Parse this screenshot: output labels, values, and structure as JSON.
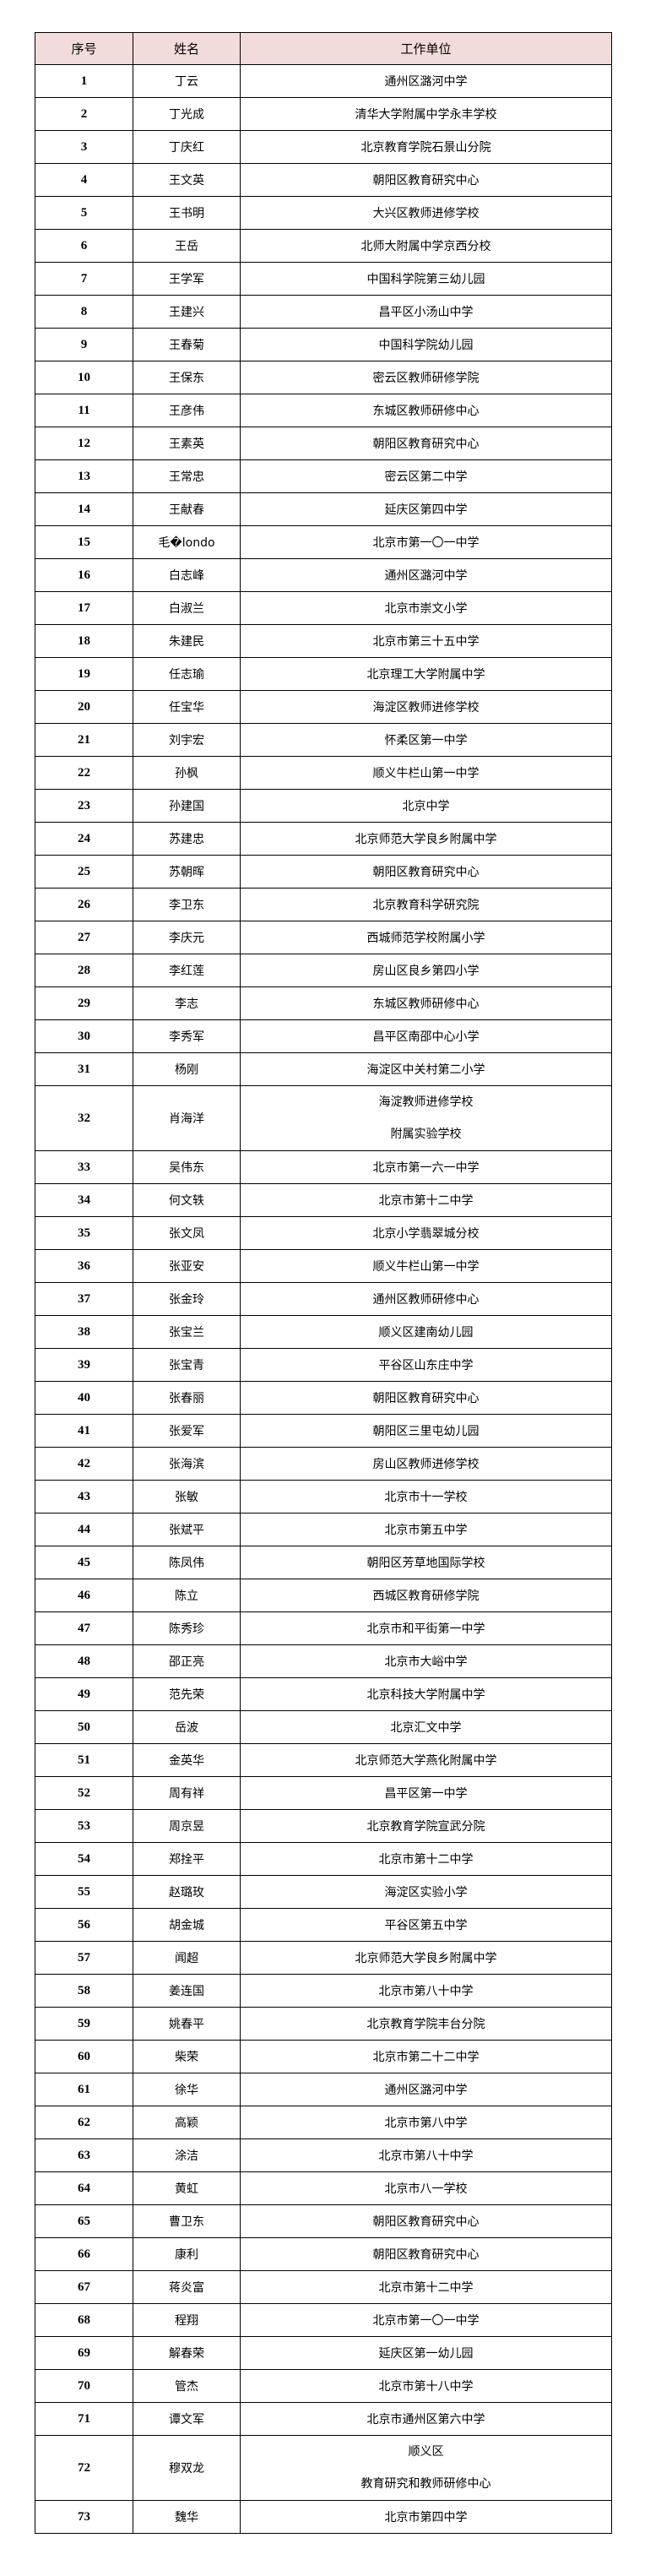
{
  "table": {
    "headers": [
      "序号",
      "姓名",
      "工作单位"
    ],
    "rows": [
      [
        "1",
        "丁云",
        "通州区潞河中学"
      ],
      [
        "2",
        "丁光成",
        "清华大学附属中学永丰学校"
      ],
      [
        "3",
        "丁庆红",
        "北京教育学院石景山分院"
      ],
      [
        "4",
        "王文英",
        "朝阳区教育研究中心"
      ],
      [
        "5",
        "王书明",
        "大兴区教师进修学校"
      ],
      [
        "6",
        "王岳",
        "北师大附属中学京西分校"
      ],
      [
        "7",
        "王学军",
        "中国科学院第三幼儿园"
      ],
      [
        "8",
        "王建兴",
        "昌平区小汤山中学"
      ],
      [
        "9",
        "王春菊",
        "中国科学院幼儿园"
      ],
      [
        "10",
        "王保东",
        "密云区教师研修学院"
      ],
      [
        "11",
        "王彦伟",
        "东城区教师研修中心"
      ],
      [
        "12",
        "王素英",
        "朝阳区教育研究中心"
      ],
      [
        "13",
        "王常忠",
        "密云区第二中学"
      ],
      [
        "14",
        "王献春",
        "延庆区第四中学"
      ],
      [
        "15",
        "毛�londo",
        "北京市第一〇一中学"
      ],
      [
        "16",
        "白志峰",
        "通州区潞河中学"
      ],
      [
        "17",
        "白淑兰",
        "北京市崇文小学"
      ],
      [
        "18",
        "朱建民",
        "北京市第三十五中学"
      ],
      [
        "19",
        "任志瑜",
        "北京理工大学附属中学"
      ],
      [
        "20",
        "任宝华",
        "海淀区教师进修学校"
      ],
      [
        "21",
        "刘宇宏",
        "怀柔区第一中学"
      ],
      [
        "22",
        "孙枫",
        "顺义牛栏山第一中学"
      ],
      [
        "23",
        "孙建国",
        "北京中学"
      ],
      [
        "24",
        "苏建忠",
        "北京师范大学良乡附属中学"
      ],
      [
        "25",
        "苏朝晖",
        "朝阳区教育研究中心"
      ],
      [
        "26",
        "李卫东",
        "北京教育科学研究院"
      ],
      [
        "27",
        "李庆元",
        "西城师范学校附属小学"
      ],
      [
        "28",
        "李红莲",
        "房山区良乡第四小学"
      ],
      [
        "29",
        "李志",
        "东城区教师研修中心"
      ],
      [
        "30",
        "李秀军",
        "昌平区南邵中心小学"
      ],
      [
        "31",
        "杨刚",
        "海淀区中关村第二小学"
      ],
      [
        "32",
        "肖海洋",
        "海淀教师进修学校\n附属实验学校"
      ],
      [
        "33",
        "吴伟东",
        "北京市第一六一中学"
      ],
      [
        "34",
        "何文轶",
        "北京市第十二中学"
      ],
      [
        "35",
        "张文凤",
        "北京小学翡翠城分校"
      ],
      [
        "36",
        "张亚安",
        "顺义牛栏山第一中学"
      ],
      [
        "37",
        "张金玲",
        "通州区教师研修中心"
      ],
      [
        "38",
        "张宝兰",
        "顺义区建南幼儿园"
      ],
      [
        "39",
        "张宝青",
        "平谷区山东庄中学"
      ],
      [
        "40",
        "张春丽",
        "朝阳区教育研究中心"
      ],
      [
        "41",
        "张爱军",
        "朝阳区三里屯幼儿园"
      ],
      [
        "42",
        "张海滨",
        "房山区教师进修学校"
      ],
      [
        "43",
        "张敏",
        "北京市十一学校"
      ],
      [
        "44",
        "张斌平",
        "北京市第五中学"
      ],
      [
        "45",
        "陈凤伟",
        "朝阳区芳草地国际学校"
      ],
      [
        "46",
        "陈立",
        "西城区教育研修学院"
      ],
      [
        "47",
        "陈秀珍",
        "北京市和平街第一中学"
      ],
      [
        "48",
        "邵正亮",
        "北京市大峪中学"
      ],
      [
        "49",
        "范先荣",
        "北京科技大学附属中学"
      ],
      [
        "50",
        "岳波",
        "北京汇文中学"
      ],
      [
        "51",
        "金英华",
        "北京师范大学燕化附属中学"
      ],
      [
        "52",
        "周有祥",
        "昌平区第一中学"
      ],
      [
        "53",
        "周京昱",
        "北京教育学院宣武分院"
      ],
      [
        "54",
        "郑拴平",
        "北京市第十二中学"
      ],
      [
        "55",
        "赵璐玫",
        "海淀区实验小学"
      ],
      [
        "56",
        "胡金城",
        "平谷区第五中学"
      ],
      [
        "57",
        "闻超",
        "北京师范大学良乡附属中学"
      ],
      [
        "58",
        "姜连国",
        "北京市第八十中学"
      ],
      [
        "59",
        "姚春平",
        "北京教育学院丰台分院"
      ],
      [
        "60",
        "柴荣",
        "北京市第二十二中学"
      ],
      [
        "61",
        "徐华",
        "通州区潞河中学"
      ],
      [
        "62",
        "高颖",
        "北京市第八中学"
      ],
      [
        "63",
        "涂洁",
        "北京市第八十中学"
      ],
      [
        "64",
        "黄虹",
        "北京市八一学校"
      ],
      [
        "65",
        "曹卫东",
        "朝阳区教育研究中心"
      ],
      [
        "66",
        "康利",
        "朝阳区教育研究中心"
      ],
      [
        "67",
        "蒋炎富",
        "北京市第十二中学"
      ],
      [
        "68",
        "程翔",
        "北京市第一〇一中学"
      ],
      [
        "69",
        "解春荣",
        "延庆区第一幼儿园"
      ],
      [
        "70",
        "管杰",
        "北京市第十八中学"
      ],
      [
        "71",
        "谭文军",
        "北京市通州区第六中学"
      ],
      [
        "72",
        "穆双龙",
        "顺义区\n教育研究和教师研修中心"
      ],
      [
        "73",
        "魏华",
        "北京市第四中学"
      ]
    ]
  },
  "colors": {
    "header_bg": "#f2dcdb",
    "border": "#000000"
  }
}
